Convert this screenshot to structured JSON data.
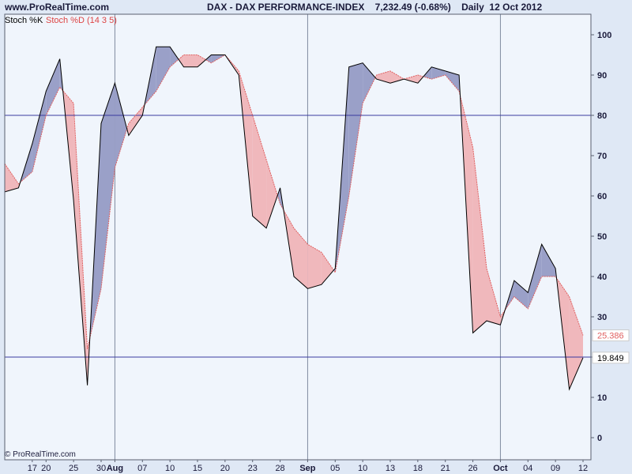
{
  "header": {
    "site": "www.ProRealTime.com",
    "headline": "DAX - DAX PERFORMANCE-INDEX    7,232.49 (-0.68%)    Daily  12 Oct 2012"
  },
  "legend": {
    "k_label": "Stoch %K",
    "d_label": "Stoch %D (14 3 5)"
  },
  "copyright": "© ProRealTime.com",
  "colors": {
    "background": "#dfe8f5",
    "plot_bg": "#f0f5fc",
    "k_line": "#000000",
    "d_line": "#e06060",
    "fill_k_above": "#9aa0c8",
    "fill_d_above": "#f0b8bc",
    "level_line": "#3a3aa0",
    "separator": "#7f8aa0"
  },
  "chart_data": {
    "type": "line",
    "title": "DAX - DAX PERFORMANCE-INDEX",
    "ylim": [
      0,
      100
    ],
    "yticks": [
      0,
      10,
      20,
      30,
      40,
      50,
      60,
      70,
      80,
      90,
      100
    ],
    "levels": [
      80,
      20
    ],
    "last_values": {
      "d": "25.386",
      "k": "19.849"
    },
    "x_labels": [
      {
        "index": 2,
        "label": "17",
        "bold": false
      },
      {
        "index": 3,
        "label": "20",
        "bold": false
      },
      {
        "index": 5,
        "label": "25",
        "bold": false
      },
      {
        "index": 7,
        "label": "30",
        "bold": false
      },
      {
        "index": 8,
        "label": "Aug",
        "bold": true
      },
      {
        "index": 10,
        "label": "07",
        "bold": false
      },
      {
        "index": 12,
        "label": "10",
        "bold": false
      },
      {
        "index": 14,
        "label": "15",
        "bold": false
      },
      {
        "index": 16,
        "label": "20",
        "bold": false
      },
      {
        "index": 18,
        "label": "23",
        "bold": false
      },
      {
        "index": 20,
        "label": "28",
        "bold": false
      },
      {
        "index": 22,
        "label": "Sep",
        "bold": true
      },
      {
        "index": 24,
        "label": "05",
        "bold": false
      },
      {
        "index": 26,
        "label": "10",
        "bold": false
      },
      {
        "index": 28,
        "label": "13",
        "bold": false
      },
      {
        "index": 30,
        "label": "18",
        "bold": false
      },
      {
        "index": 32,
        "label": "21",
        "bold": false
      },
      {
        "index": 34,
        "label": "26",
        "bold": false
      },
      {
        "index": 36,
        "label": "Oct",
        "bold": true
      },
      {
        "index": 38,
        "label": "04",
        "bold": false
      },
      {
        "index": 40,
        "label": "09",
        "bold": false
      },
      {
        "index": 42,
        "label": "12",
        "bold": false
      }
    ],
    "month_separators": [
      8,
      22,
      36
    ],
    "series": [
      {
        "name": "Stoch %K",
        "values": [
          61,
          62,
          73,
          86,
          94,
          59,
          13,
          78,
          88,
          75,
          80,
          97,
          97,
          92,
          92,
          95,
          95,
          90,
          55,
          52,
          62,
          40,
          37,
          38,
          42,
          92,
          93,
          89,
          88,
          89,
          88,
          92,
          91,
          90,
          26,
          29,
          28,
          39,
          36,
          48,
          42,
          12,
          19.849
        ]
      },
      {
        "name": "Stoch %D (14 3 5)",
        "values": [
          68,
          63,
          66,
          80,
          87,
          83,
          22,
          37,
          67,
          78,
          82,
          86,
          92,
          95,
          95,
          93,
          95,
          91,
          80,
          69,
          58,
          52,
          48,
          46,
          41,
          60,
          83,
          90,
          91,
          89,
          90,
          89,
          90,
          86,
          72,
          42,
          30,
          35,
          32,
          40,
          40,
          35,
          25.386
        ]
      }
    ]
  }
}
